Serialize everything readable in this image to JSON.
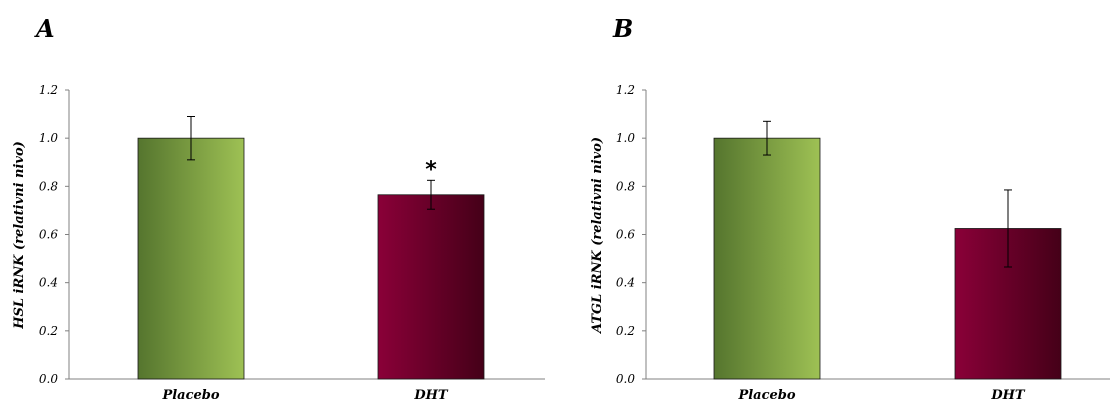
{
  "colors": {
    "placebo_dark": "#55752e",
    "placebo_light": "#9ec154",
    "dht_light": "#8a0038",
    "dht_dark": "#450018"
  },
  "chart_data": [
    {
      "type": "bar",
      "panel": "A",
      "ylabel": "HSL iRNK (relativni nivo)",
      "categories": [
        "Placebo",
        "DHT"
      ],
      "values": [
        1.0,
        0.765
      ],
      "errors": [
        0.09,
        0.06
      ],
      "significance": [
        "",
        "*"
      ],
      "bar_colors": [
        "placebo",
        "dht"
      ],
      "ylim": [
        0,
        1.2
      ],
      "yticks": [
        "0.0",
        "0.2",
        "0.4",
        "0.6",
        "0.8",
        "1.0",
        "1.2"
      ]
    },
    {
      "type": "bar",
      "panel": "B",
      "ylabel": "ATGL iRNK (relativni nivo)",
      "categories": [
        "Placebo",
        "DHT"
      ],
      "values": [
        1.0,
        0.625
      ],
      "errors": [
        0.07,
        0.16
      ],
      "significance": [
        "",
        ""
      ],
      "bar_colors": [
        "placebo",
        "dht"
      ],
      "ylim": [
        0,
        1.2
      ],
      "yticks": [
        "0.0",
        "0.2",
        "0.4",
        "0.6",
        "0.8",
        "1.0",
        "1.2"
      ]
    }
  ]
}
